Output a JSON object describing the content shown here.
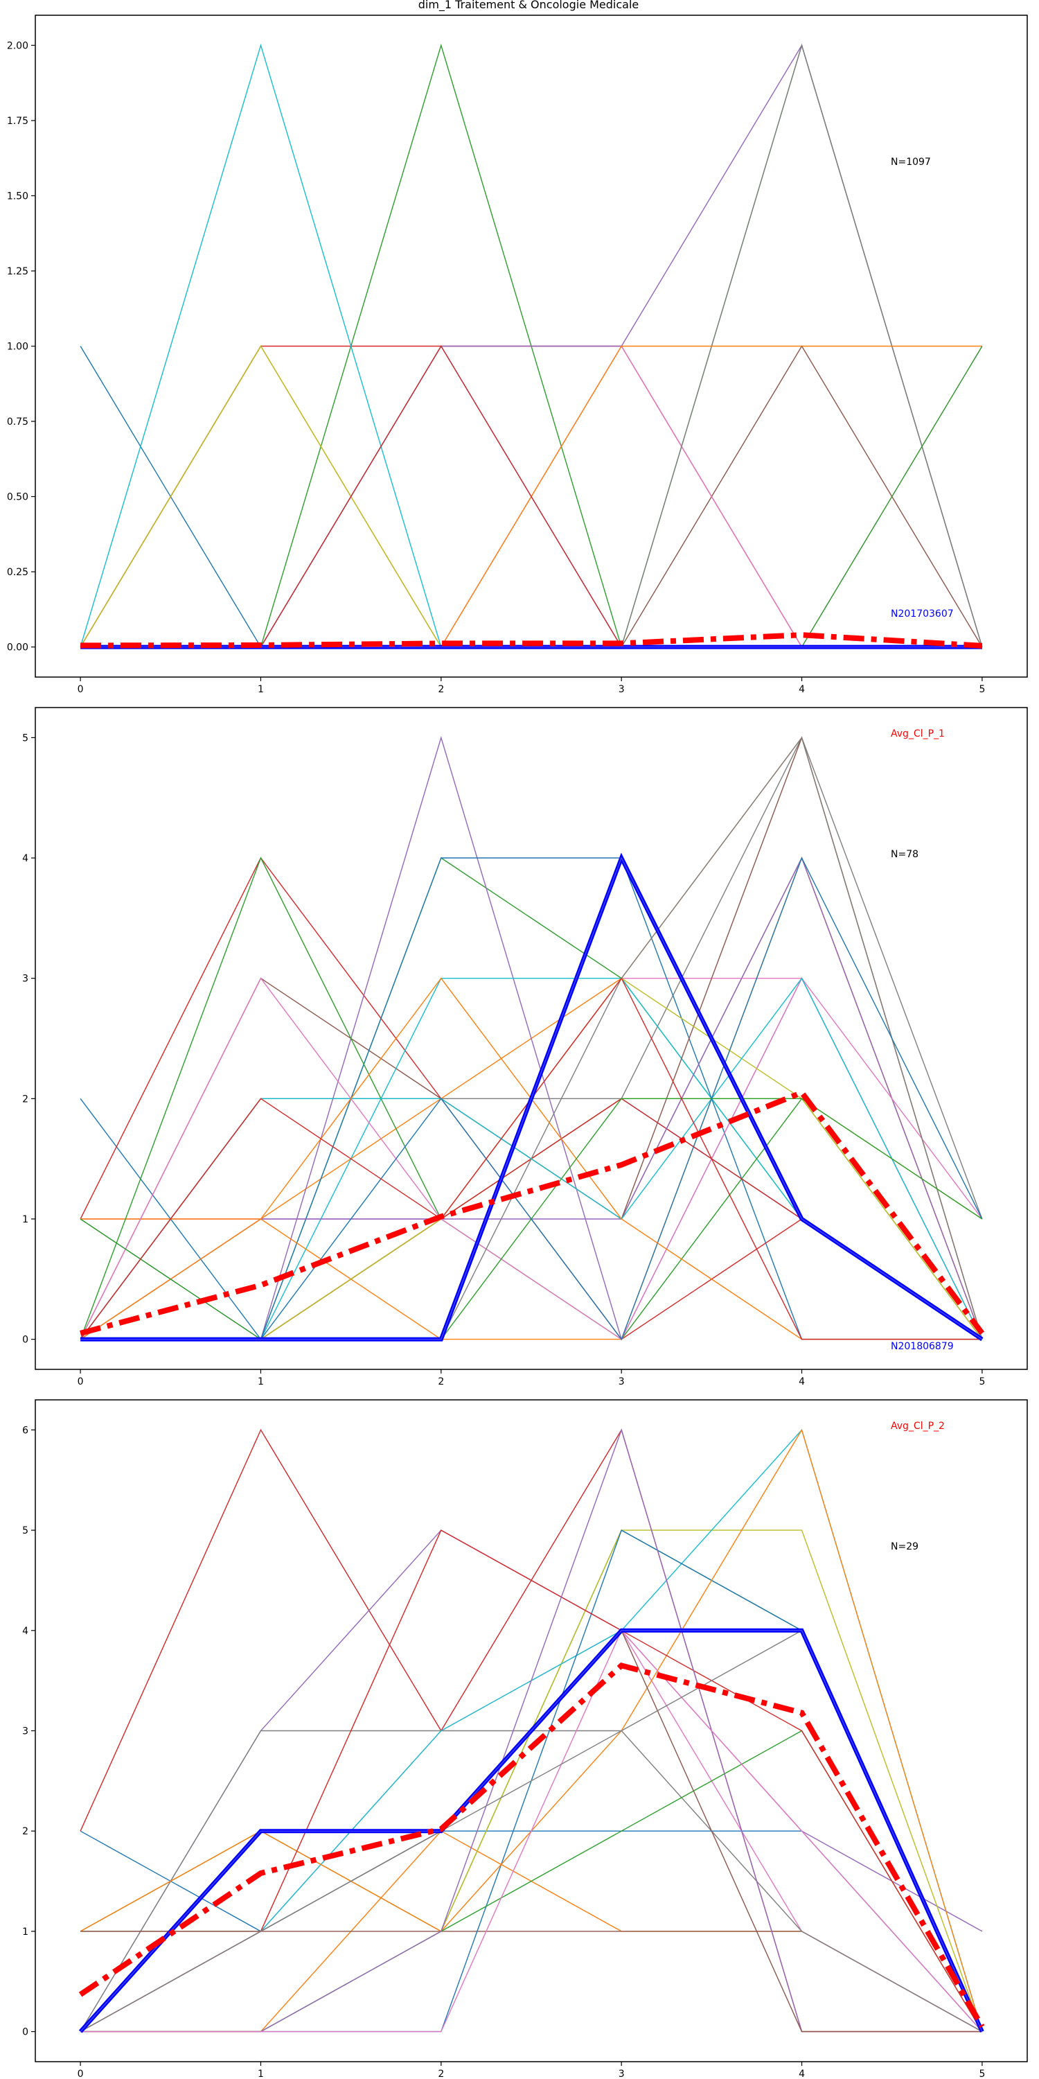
{
  "figure": {
    "title": "dim_1 Traitement & Oncologie Medicale"
  },
  "colors": {
    "average_line": "#ff0000",
    "highlight_line": "#0000ff",
    "palette": [
      "#1f77b4",
      "#ff7f0e",
      "#2ca02c",
      "#d62728",
      "#9467bd",
      "#8c564b",
      "#e377c2",
      "#7f7f7f",
      "#bcbd22",
      "#17becf"
    ]
  },
  "chart_data": [
    {
      "type": "line",
      "x": [
        0,
        1,
        2,
        3,
        4,
        5
      ],
      "xticks": [
        "0",
        "1",
        "2",
        "3",
        "4",
        "5"
      ],
      "yticks": [
        "0.00",
        "0.25",
        "0.50",
        "0.75",
        "1.00",
        "1.25",
        "1.50",
        "1.75",
        "2.00"
      ],
      "ylim": [
        -0.1,
        2.1
      ],
      "grid": false,
      "annotations": {
        "count": "N=1097",
        "highlight_id": "N201703607",
        "avg_label": ""
      },
      "average": [
        0.005,
        0.006,
        0.012,
        0.012,
        0.04,
        0.004
      ],
      "highlight": [
        0,
        0,
        0,
        0,
        0,
        0
      ],
      "series": [
        [
          1,
          0,
          0,
          0,
          0,
          0
        ],
        [
          0,
          1,
          0,
          0,
          0,
          0
        ],
        [
          0,
          0,
          2,
          0,
          2,
          0
        ],
        [
          0,
          1,
          1,
          1,
          0,
          0
        ],
        [
          0,
          0,
          1,
          1,
          2,
          0
        ],
        [
          0,
          0,
          0,
          0,
          1,
          0
        ],
        [
          0,
          0,
          0,
          1,
          0,
          1
        ],
        [
          0,
          0,
          0,
          0,
          2,
          0
        ],
        [
          0,
          1,
          0,
          0,
          0,
          0
        ],
        [
          0,
          2,
          0,
          0,
          0,
          0
        ],
        [
          0,
          0,
          1,
          0,
          0,
          0
        ],
        [
          0,
          0,
          0,
          1,
          1,
          1
        ],
        [
          0,
          0,
          0,
          0,
          0,
          1
        ],
        [
          0,
          0,
          1,
          0,
          0,
          0
        ]
      ]
    },
    {
      "type": "line",
      "x": [
        0,
        1,
        2,
        3,
        4,
        5
      ],
      "xticks": [
        "0",
        "1",
        "2",
        "3",
        "4",
        "5"
      ],
      "yticks": [
        "0",
        "1",
        "2",
        "3",
        "4",
        "5"
      ],
      "ylim": [
        -0.25,
        5.25
      ],
      "grid": false,
      "annotations": {
        "count": "N=78",
        "highlight_id": "N201806879",
        "avg_label": "Avg_Cl_P_1"
      },
      "average": [
        0.05,
        0.45,
        1.02,
        1.45,
        2.05,
        0.05
      ],
      "highlight": [
        0,
        0,
        0,
        4,
        1,
        0
      ],
      "series": [
        [
          2,
          0,
          1,
          2,
          1,
          0
        ],
        [
          0,
          1,
          2,
          3,
          5,
          0
        ],
        [
          0,
          0,
          4,
          3,
          1,
          0
        ],
        [
          1,
          4,
          2,
          0,
          1,
          0
        ],
        [
          1,
          0,
          5,
          0,
          3,
          0
        ],
        [
          0,
          3,
          2,
          1,
          4,
          0
        ],
        [
          1,
          1,
          1,
          3,
          3,
          0
        ],
        [
          0,
          2,
          2,
          2,
          5,
          1
        ],
        [
          0,
          0,
          1,
          2,
          2,
          1
        ],
        [
          0,
          0,
          3,
          3,
          1,
          0
        ],
        [
          0,
          0,
          4,
          4,
          0,
          0
        ],
        [
          1,
          1,
          0,
          0,
          4,
          0
        ],
        [
          0,
          4,
          1,
          0,
          2,
          0
        ],
        [
          0,
          0,
          1,
          2,
          1,
          0
        ],
        [
          0,
          1,
          1,
          1,
          4,
          0
        ],
        [
          0,
          2,
          2,
          1,
          5,
          0
        ],
        [
          0,
          3,
          1,
          0,
          3,
          1
        ],
        [
          0,
          0,
          0,
          3,
          5,
          0
        ],
        [
          0,
          0,
          1,
          3,
          2,
          0
        ],
        [
          0,
          2,
          2,
          1,
          3,
          0
        ],
        [
          0,
          0,
          2,
          0,
          4,
          1
        ],
        [
          0,
          1,
          3,
          1,
          0,
          0
        ],
        [
          1,
          0,
          0,
          2,
          2,
          1
        ],
        [
          0,
          2,
          1,
          3,
          0,
          0
        ]
      ]
    },
    {
      "type": "line",
      "x": [
        0,
        1,
        2,
        3,
        4,
        5
      ],
      "xticks": [
        "0",
        "1",
        "2",
        "3",
        "4",
        "5"
      ],
      "yticks": [
        "0",
        "1",
        "2",
        "3",
        "4",
        "5",
        "6"
      ],
      "ylim": [
        -0.3,
        6.3
      ],
      "grid": false,
      "annotations": {
        "count": "N=29",
        "highlight_id": "",
        "avg_label": "Avg_Cl_P_2"
      },
      "average": [
        0.37,
        1.58,
        2.02,
        3.65,
        3.18,
        0.05
      ],
      "highlight": [
        0,
        2,
        2,
        4,
        4,
        0
      ],
      "series": [
        [
          2,
          1,
          2,
          2,
          2,
          0
        ],
        [
          0,
          0,
          2,
          1,
          1,
          0
        ],
        [
          1,
          2,
          1,
          5,
          4,
          0
        ],
        [
          2,
          6,
          3,
          6,
          0,
          0
        ],
        [
          0,
          3,
          5,
          4,
          2,
          1
        ],
        [
          1,
          1,
          1,
          1,
          1,
          0
        ],
        [
          0,
          1,
          3,
          4,
          1,
          0
        ],
        [
          0,
          3,
          3,
          3,
          1,
          0
        ],
        [
          0,
          0,
          1,
          5,
          5,
          0
        ],
        [
          0,
          1,
          3,
          4,
          6,
          0
        ],
        [
          0,
          0,
          0,
          5,
          4,
          0
        ],
        [
          1,
          2,
          1,
          3,
          6,
          0
        ],
        [
          0,
          0,
          1,
          2,
          3,
          0
        ],
        [
          0,
          1,
          5,
          4,
          3,
          0
        ],
        [
          0,
          0,
          1,
          6,
          0,
          0
        ],
        [
          1,
          1,
          2,
          4,
          0,
          0
        ],
        [
          0,
          0,
          0,
          4,
          2,
          0
        ],
        [
          0,
          1,
          2,
          3,
          4,
          0
        ]
      ]
    }
  ]
}
